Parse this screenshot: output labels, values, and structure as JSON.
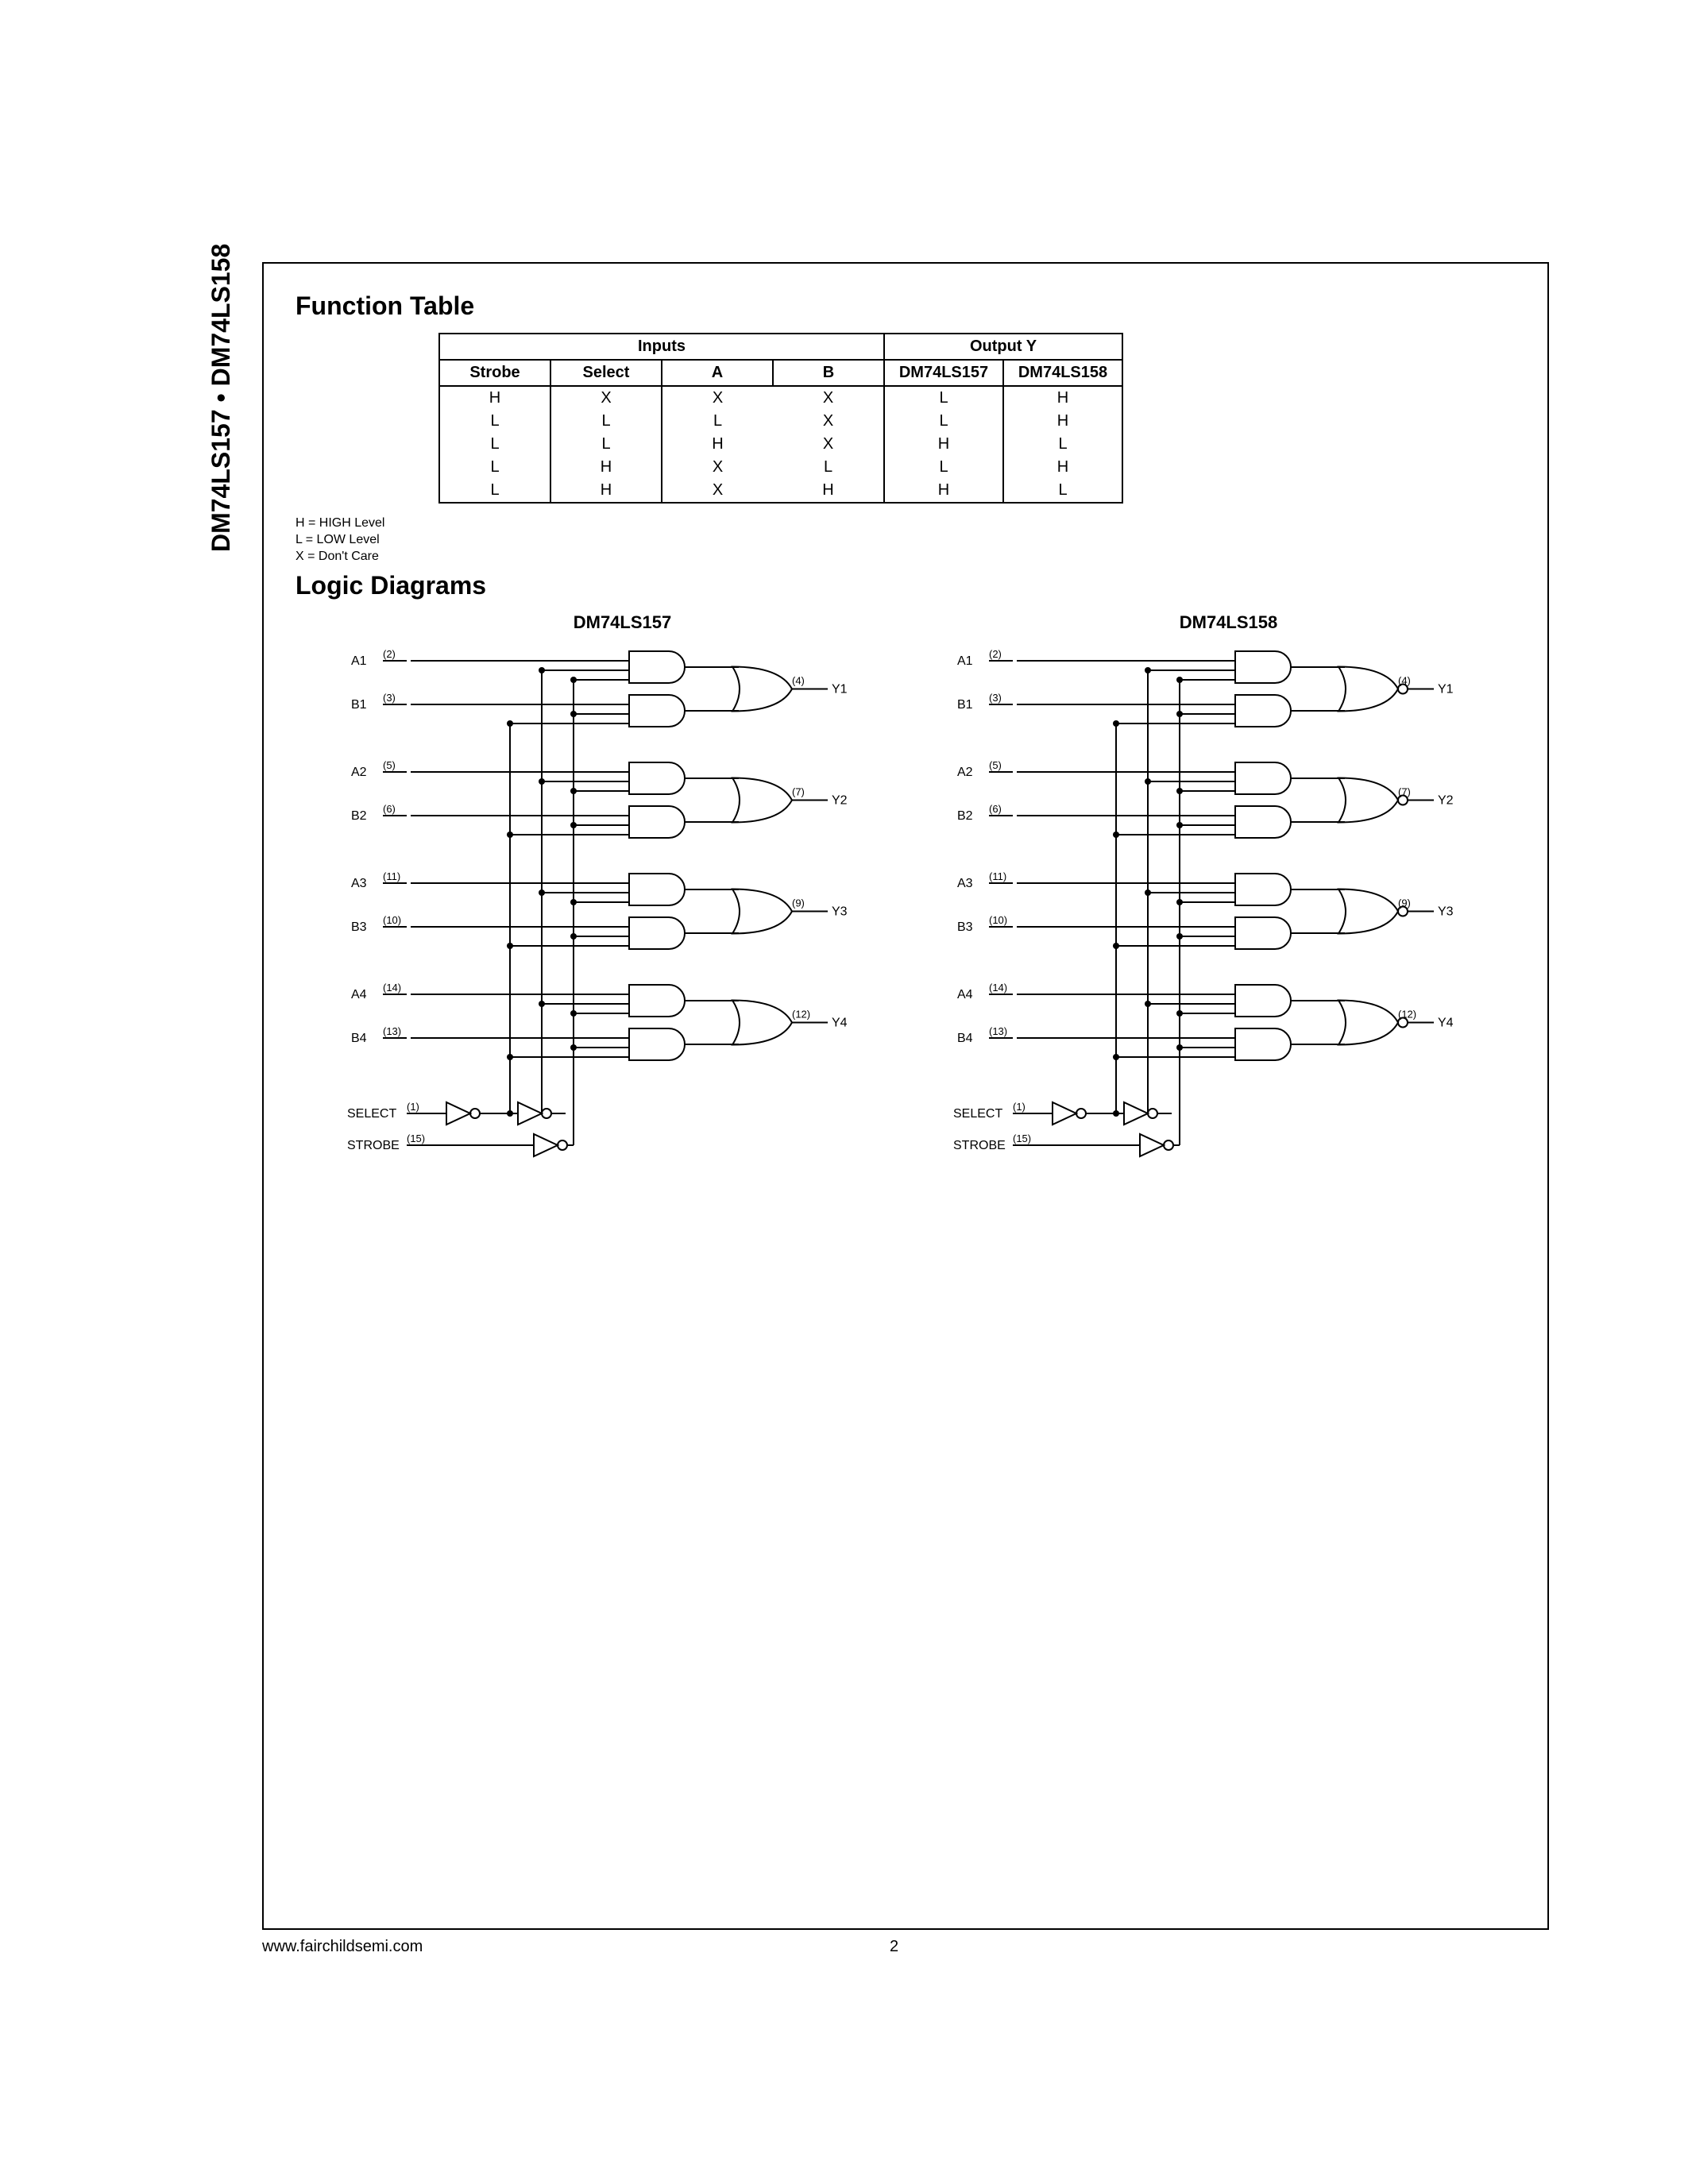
{
  "side_title": "DM74LS157 • DM74LS158",
  "footer": {
    "url": "www.fairchildsemi.com",
    "page": "2"
  },
  "section1_title": "Function Table",
  "section2_title": "Logic Diagrams",
  "legend": {
    "l1": "H = HIGH Level",
    "l2": "L = LOW Level",
    "l3": "X = Don't Care"
  },
  "table": {
    "group_inputs": "Inputs",
    "group_output": "Output Y",
    "headers": {
      "strobe": "Strobe",
      "select": "Select",
      "a": "A",
      "b": "B",
      "o1": "DM74LS157",
      "o2": "DM74LS158"
    },
    "rows": [
      {
        "strobe": "H",
        "select": "X",
        "a": "X",
        "b": "X",
        "o1": "L",
        "o2": "H"
      },
      {
        "strobe": "L",
        "select": "L",
        "a": "L",
        "b": "X",
        "o1": "L",
        "o2": "H"
      },
      {
        "strobe": "L",
        "select": "L",
        "a": "H",
        "b": "X",
        "o1": "H",
        "o2": "L"
      },
      {
        "strobe": "L",
        "select": "H",
        "a": "X",
        "b": "L",
        "o1": "L",
        "o2": "H"
      },
      {
        "strobe": "L",
        "select": "H",
        "a": "X",
        "b": "H",
        "o1": "H",
        "o2": "L"
      }
    ]
  },
  "diagrams": {
    "left": {
      "title": "DM74LS157",
      "signals": [
        {
          "label": "A1",
          "pin": "(2)"
        },
        {
          "label": "B1",
          "pin": "(3)"
        },
        {
          "label": "A2",
          "pin": "(5)"
        },
        {
          "label": "B2",
          "pin": "(6)"
        },
        {
          "label": "A3",
          "pin": "(11)"
        },
        {
          "label": "B3",
          "pin": "(10)"
        },
        {
          "label": "A4",
          "pin": "(14)"
        },
        {
          "label": "B4",
          "pin": "(13)"
        }
      ],
      "select": {
        "label": "SELECT",
        "pin": "(1)"
      },
      "strobe": {
        "label": "STROBE",
        "pin": "(15)"
      },
      "outputs": [
        {
          "label": "Y1",
          "pin": "(4)"
        },
        {
          "label": "Y2",
          "pin": "(7)"
        },
        {
          "label": "Y3",
          "pin": "(9)"
        },
        {
          "label": "Y4",
          "pin": "(12)"
        }
      ],
      "inverted_output": false
    },
    "right": {
      "title": "DM74LS158",
      "signals": [
        {
          "label": "A1",
          "pin": "(2)"
        },
        {
          "label": "B1",
          "pin": "(3)"
        },
        {
          "label": "A2",
          "pin": "(5)"
        },
        {
          "label": "B2",
          "pin": "(6)"
        },
        {
          "label": "A3",
          "pin": "(11)"
        },
        {
          "label": "B3",
          "pin": "(10)"
        },
        {
          "label": "A4",
          "pin": "(14)"
        },
        {
          "label": "B4",
          "pin": "(13)"
        }
      ],
      "select": {
        "label": "SELECT",
        "pin": "(1)"
      },
      "strobe": {
        "label": "STROBE",
        "pin": "(15)"
      },
      "outputs": [
        {
          "label": "Y1",
          "pin": "(4)"
        },
        {
          "label": "Y2",
          "pin": "(7)"
        },
        {
          "label": "Y3",
          "pin": "(9)"
        },
        {
          "label": "Y4",
          "pin": "(12)"
        }
      ],
      "inverted_output": true
    }
  }
}
